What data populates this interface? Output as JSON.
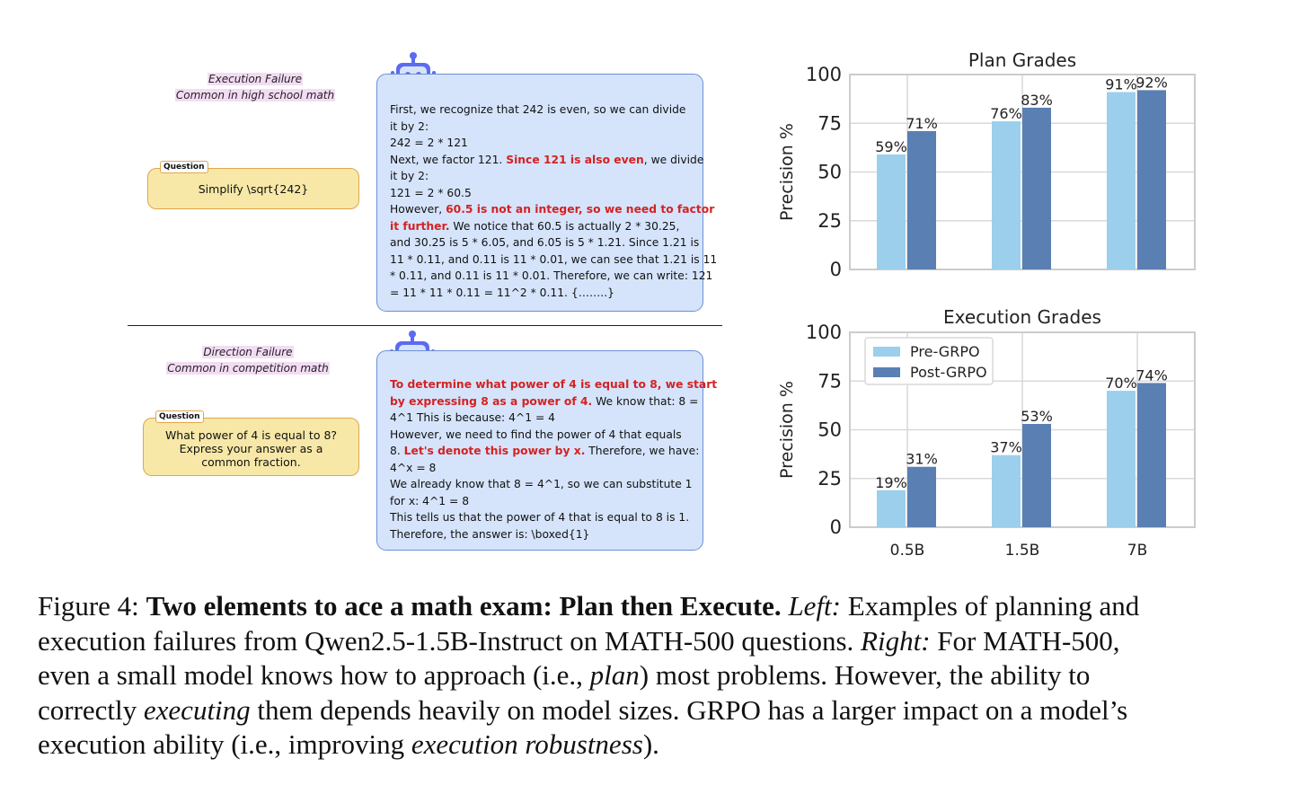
{
  "left": {
    "examples": [
      {
        "failure_type": "Execution Failure",
        "failure_note": "Common in high school math",
        "question_tag": "Question",
        "question_text": "Simplify \\sqrt{242}",
        "answer_lines": [
          [
            {
              "t": "First, we recognize that 242 is even, so we can divide"
            }
          ],
          [
            {
              "t": "it by 2:"
            }
          ],
          [
            {
              "t": " 242 = 2 * 121"
            }
          ],
          [
            {
              "t": "Next, we factor 121. "
            },
            {
              "t": "Since 121 is also even",
              "red": true
            },
            {
              "t": ", we divide"
            }
          ],
          [
            {
              "t": "it by 2:"
            }
          ],
          [
            {
              "t": "121 = 2 * 60.5"
            }
          ],
          [
            {
              "t": "However, "
            },
            {
              "t": "60.5 is not an integer, so we need to factor",
              "red": true
            }
          ],
          [
            {
              "t": "it further.",
              "red": true
            },
            {
              "t": " We notice that 60.5 is actually 2 * 30.25,"
            }
          ],
          [
            {
              "t": "and 30.25 is 5 * 6.05, and 6.05 is 5 * 1.21. Since 1.21 is"
            }
          ],
          [
            {
              "t": "11 * 0.11, and 0.11 is 11 * 0.01, we can see that 1.21 is 11"
            }
          ],
          [
            {
              "t": "* 0.11, and 0.11 is 11 * 0.01. Therefore, we can write: 121"
            }
          ],
          [
            {
              "t": "= 11 * 11 * 0.11 = 11^2 * 0.11. {……..}"
            }
          ]
        ]
      },
      {
        "failure_type": "Direction Failure",
        "failure_note": "Common in competition math",
        "question_tag": "Question",
        "question_text": "What power of 4 is equal to 8? Express your answer as a common fraction.",
        "answer_lines": [
          [
            {
              "t": "To determine what power of 4 is equal to 8, we start",
              "red": true
            }
          ],
          [
            {
              "t": "by expressing 8 as a power of 4.",
              "red": true
            },
            {
              "t": " We know that: 8 ="
            }
          ],
          [
            {
              "t": "4^1  This is because: 4^1 = 4"
            }
          ],
          [
            {
              "t": "However, we need to find the power of 4 that equals"
            }
          ],
          [
            {
              "t": "8. "
            },
            {
              "t": "Let's denote this power by x.",
              "red": true
            },
            {
              "t": " Therefore, we have:"
            }
          ],
          [
            {
              "t": "4^x = 8"
            }
          ],
          [
            {
              "t": "We already know that 8 = 4^1, so we can substitute 1"
            }
          ],
          [
            {
              "t": "for x: 4^1 = 8"
            }
          ],
          [
            {
              "t": "This tells us that the power of 4 that is equal to 8 is 1."
            }
          ],
          [
            {
              "t": "Therefore, the answer is: \\boxed{1}"
            }
          ]
        ]
      }
    ]
  },
  "chart_data": [
    {
      "type": "bar",
      "title": "Plan Grades",
      "ylabel": "Precision %",
      "xlabel": "",
      "ylim": [
        0,
        100
      ],
      "yticks": [
        "0",
        "25",
        "50",
        "75",
        "100"
      ],
      "categories": [
        "0.5B",
        "1.5B",
        "7B"
      ],
      "show_xticklabels": false,
      "legend": null,
      "grid": true,
      "series": [
        {
          "name": "Pre-GRPO",
          "values": [
            59,
            76,
            91
          ],
          "labels": [
            "59%",
            "76%",
            "91%"
          ],
          "color": "#9ccfec"
        },
        {
          "name": "Post-GRPO",
          "values": [
            71,
            83,
            92
          ],
          "labels": [
            "71%",
            "83%",
            "92%"
          ],
          "color": "#5a7fb3"
        }
      ]
    },
    {
      "type": "bar",
      "title": "Execution Grades",
      "ylabel": "Precision %",
      "xlabel": "",
      "ylim": [
        0,
        100
      ],
      "yticks": [
        "0",
        "25",
        "50",
        "75",
        "100"
      ],
      "categories": [
        "0.5B",
        "1.5B",
        "7B"
      ],
      "show_xticklabels": true,
      "legend": "top-left",
      "grid": true,
      "series": [
        {
          "name": "Pre-GRPO",
          "values": [
            19,
            37,
            70
          ],
          "labels": [
            "19%",
            "37%",
            "70%"
          ],
          "color": "#9ccfec"
        },
        {
          "name": "Post-GRPO",
          "values": [
            31,
            53,
            74
          ],
          "labels": [
            "31%",
            "53%",
            "74%"
          ],
          "color": "#5a7fb3"
        }
      ]
    }
  ],
  "caption": {
    "lines": [
      [
        {
          "t": "Figure 4: "
        },
        {
          "t": "Two elements to ace a math exam: Plan then Execute.",
          "b": true
        },
        {
          "t": " "
        },
        {
          "t": "Left:",
          "i": true
        },
        {
          "t": " Examples of planning and"
        }
      ],
      [
        {
          "t": "execution failures from Qwen2.5-1.5B-Instruct on MATH-500 questions. "
        },
        {
          "t": "Right:",
          "i": true
        },
        {
          "t": " For MATH-500,"
        }
      ],
      [
        {
          "t": "even a small model knows how to approach (i.e., "
        },
        {
          "t": "plan",
          "i": true
        },
        {
          "t": ") most problems.  However, the ability to"
        }
      ],
      [
        {
          "t": "correctly "
        },
        {
          "t": "executing",
          "i": true
        },
        {
          "t": " them depends heavily on model sizes. GRPO has a larger impact on a model’s"
        }
      ],
      [
        {
          "t": "execution ability (i.e., improving "
        },
        {
          "t": "execution robustness",
          "i": true
        },
        {
          "t": ")."
        }
      ]
    ]
  }
}
